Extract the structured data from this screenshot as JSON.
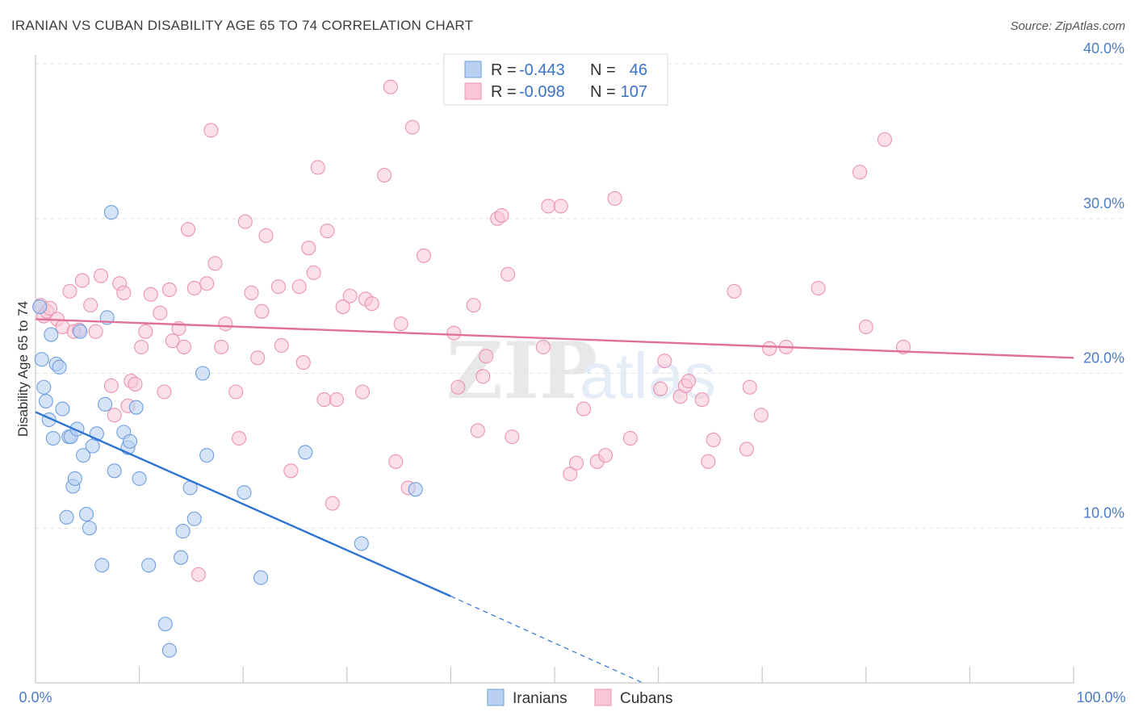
{
  "title": "IRANIAN VS CUBAN DISABILITY AGE 65 TO 74 CORRELATION CHART",
  "source": "Source: ZipAtlas.com",
  "watermark": {
    "zip": "ZIP",
    "atlas": "atlas"
  },
  "colors": {
    "iranians_fill": "#b9d0f2",
    "iranians_stroke": "#6f9fdf",
    "iranians_line": "#2d74d2",
    "cubans_fill": "#f8c6d6",
    "cubans_stroke": "#eb93b0",
    "cubans_line": "#e0709a",
    "axis_label": "#4a7dc9",
    "grid": "#e2e2e2"
  },
  "legend_top": {
    "rows": [
      {
        "r_label": "R =",
        "r_value": "-0.443",
        "n_label": "N =",
        "n_value": "46"
      },
      {
        "r_label": "R =",
        "r_value": "-0.098",
        "n_label": "N =",
        "n_value": "107"
      }
    ]
  },
  "legend_bottom": {
    "items": [
      "Iranians",
      "Cubans"
    ]
  },
  "chart_data": {
    "type": "scatter",
    "title": "IRANIAN VS CUBAN DISABILITY AGE 65 TO 74 CORRELATION CHART",
    "xlabel": "",
    "ylabel": "Disability Age 65 to 74",
    "xlim": [
      0,
      100
    ],
    "ylim": [
      0,
      40
    ],
    "x_tick_labels": {
      "left": "0.0%",
      "right": "100.0%"
    },
    "y_ticks": [
      10,
      20,
      30,
      40
    ],
    "y_tick_labels": [
      "10.0%",
      "20.0%",
      "30.0%",
      "40.0%"
    ],
    "grid": true,
    "legend_placement": "top-center",
    "series": [
      {
        "name": "Iranians",
        "r": -0.443,
        "n": 46,
        "trend": {
          "x_start": 0,
          "y_start": 17.5,
          "x_solid_end": 40,
          "y_solid_end": 5.6,
          "x_dashed_end": 58.5,
          "y_dashed_end": 0.0
        },
        "points": [
          [
            0.4,
            24.3
          ],
          [
            0.6,
            20.9
          ],
          [
            0.8,
            19.1
          ],
          [
            1.0,
            18.2
          ],
          [
            1.3,
            17.0
          ],
          [
            1.5,
            22.5
          ],
          [
            1.7,
            15.8
          ],
          [
            2.0,
            20.6
          ],
          [
            2.3,
            20.4
          ],
          [
            2.6,
            17.7
          ],
          [
            3.0,
            10.7
          ],
          [
            3.2,
            15.9
          ],
          [
            3.4,
            15.9
          ],
          [
            3.6,
            12.7
          ],
          [
            3.8,
            13.2
          ],
          [
            4.0,
            16.4
          ],
          [
            4.3,
            22.7
          ],
          [
            4.6,
            14.7
          ],
          [
            4.9,
            10.9
          ],
          [
            5.2,
            10.0
          ],
          [
            5.5,
            15.3
          ],
          [
            5.9,
            16.1
          ],
          [
            6.4,
            7.6
          ],
          [
            6.7,
            18.0
          ],
          [
            6.9,
            23.6
          ],
          [
            7.3,
            30.4
          ],
          [
            7.6,
            13.7
          ],
          [
            8.5,
            16.2
          ],
          [
            8.9,
            15.2
          ],
          [
            9.1,
            15.6
          ],
          [
            9.7,
            17.8
          ],
          [
            10.0,
            13.2
          ],
          [
            10.9,
            7.6
          ],
          [
            12.5,
            3.8
          ],
          [
            12.9,
            2.1
          ],
          [
            14.0,
            8.1
          ],
          [
            14.2,
            9.8
          ],
          [
            14.9,
            12.6
          ],
          [
            15.3,
            10.6
          ],
          [
            16.1,
            20.0
          ],
          [
            16.5,
            14.7
          ],
          [
            20.1,
            12.3
          ],
          [
            21.7,
            6.8
          ],
          [
            26.0,
            14.9
          ],
          [
            31.4,
            9.0
          ],
          [
            36.6,
            12.5
          ]
        ]
      },
      {
        "name": "Cubans",
        "r": -0.098,
        "n": 107,
        "trend": {
          "x_start": 0,
          "y_start": 23.5,
          "x_end": 100,
          "y_end": 21.0
        },
        "points": [
          [
            0.5,
            24.4
          ],
          [
            0.8,
            23.7
          ],
          [
            1.1,
            24.0
          ],
          [
            1.4,
            24.2
          ],
          [
            2.1,
            23.5
          ],
          [
            2.6,
            23.0
          ],
          [
            3.3,
            25.3
          ],
          [
            3.7,
            22.7
          ],
          [
            4.2,
            22.8
          ],
          [
            4.5,
            26.0
          ],
          [
            5.3,
            24.4
          ],
          [
            5.8,
            22.7
          ],
          [
            6.3,
            26.3
          ],
          [
            7.3,
            19.2
          ],
          [
            7.6,
            17.3
          ],
          [
            8.1,
            25.8
          ],
          [
            8.5,
            25.2
          ],
          [
            8.9,
            17.9
          ],
          [
            9.2,
            19.5
          ],
          [
            9.6,
            19.3
          ],
          [
            10.2,
            21.7
          ],
          [
            10.6,
            22.7
          ],
          [
            11.1,
            25.1
          ],
          [
            12.0,
            23.9
          ],
          [
            12.4,
            18.8
          ],
          [
            12.9,
            25.4
          ],
          [
            13.2,
            22.1
          ],
          [
            13.8,
            22.9
          ],
          [
            14.3,
            21.7
          ],
          [
            14.7,
            29.3
          ],
          [
            15.3,
            25.5
          ],
          [
            15.7,
            7.0
          ],
          [
            16.5,
            25.8
          ],
          [
            16.9,
            35.7
          ],
          [
            17.3,
            27.1
          ],
          [
            17.9,
            21.7
          ],
          [
            18.3,
            23.2
          ],
          [
            19.3,
            18.8
          ],
          [
            19.6,
            15.8
          ],
          [
            20.2,
            29.8
          ],
          [
            20.8,
            25.2
          ],
          [
            21.4,
            21.0
          ],
          [
            21.8,
            24.0
          ],
          [
            22.2,
            28.9
          ],
          [
            23.4,
            25.6
          ],
          [
            23.7,
            21.8
          ],
          [
            24.6,
            13.7
          ],
          [
            25.4,
            25.6
          ],
          [
            25.8,
            20.7
          ],
          [
            26.3,
            28.1
          ],
          [
            26.8,
            26.5
          ],
          [
            27.2,
            33.3
          ],
          [
            27.8,
            18.3
          ],
          [
            28.1,
            29.2
          ],
          [
            28.6,
            11.6
          ],
          [
            29.0,
            18.3
          ],
          [
            29.6,
            24.3
          ],
          [
            30.3,
            25.0
          ],
          [
            31.5,
            18.8
          ],
          [
            31.8,
            24.8
          ],
          [
            32.4,
            24.5
          ],
          [
            33.6,
            32.8
          ],
          [
            34.2,
            38.5
          ],
          [
            34.7,
            14.3
          ],
          [
            35.2,
            23.2
          ],
          [
            35.9,
            12.6
          ],
          [
            36.3,
            35.9
          ],
          [
            37.4,
            27.6
          ],
          [
            40.3,
            22.6
          ],
          [
            40.7,
            19.1
          ],
          [
            42.2,
            24.4
          ],
          [
            42.6,
            16.3
          ],
          [
            43.1,
            19.8
          ],
          [
            43.4,
            21.1
          ],
          [
            44.5,
            30.0
          ],
          [
            44.9,
            30.2
          ],
          [
            45.5,
            26.4
          ],
          [
            45.9,
            15.9
          ],
          [
            48.9,
            21.7
          ],
          [
            49.4,
            30.8
          ],
          [
            50.6,
            30.8
          ],
          [
            51.5,
            13.5
          ],
          [
            52.1,
            14.2
          ],
          [
            52.8,
            17.7
          ],
          [
            54.1,
            14.3
          ],
          [
            54.9,
            14.7
          ],
          [
            55.8,
            31.3
          ],
          [
            57.3,
            15.8
          ],
          [
            60.2,
            19.0
          ],
          [
            60.6,
            20.8
          ],
          [
            62.1,
            18.5
          ],
          [
            62.6,
            19.2
          ],
          [
            62.9,
            19.5
          ],
          [
            64.2,
            18.3
          ],
          [
            64.8,
            14.3
          ],
          [
            65.3,
            15.7
          ],
          [
            67.3,
            25.3
          ],
          [
            68.5,
            15.1
          ],
          [
            68.8,
            19.1
          ],
          [
            69.9,
            17.3
          ],
          [
            70.7,
            21.6
          ],
          [
            72.3,
            21.7
          ],
          [
            75.4,
            25.5
          ],
          [
            79.4,
            33.0
          ],
          [
            80.0,
            23.0
          ],
          [
            81.8,
            35.1
          ],
          [
            83.6,
            21.7
          ]
        ]
      }
    ]
  }
}
